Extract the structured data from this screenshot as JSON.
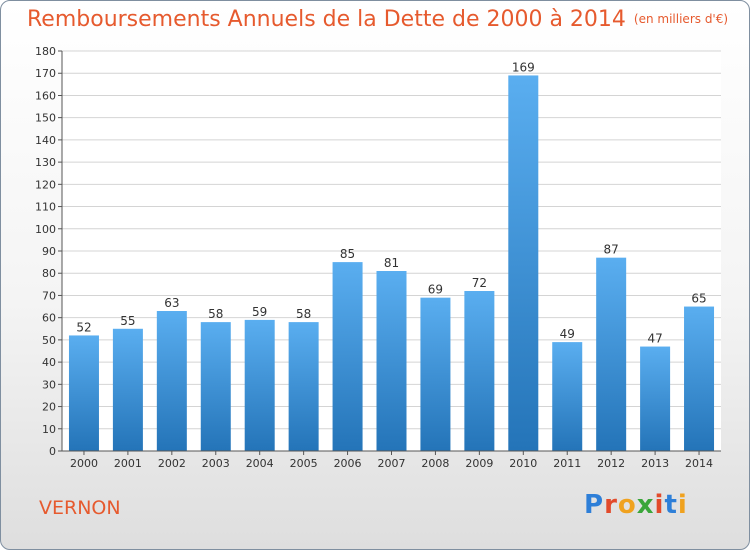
{
  "title": "Remboursements Annuels de la Dette de 2000 à 2014",
  "subtitle": "(en milliers d'€)",
  "footer": {
    "city": "VERNON",
    "logo": "Proxiti"
  },
  "colors": {
    "accent": "#e65a2e",
    "bar_top": "#5aaef0",
    "bar_bottom": "#2474b8"
  },
  "chart_data": {
    "type": "bar",
    "title": "Remboursements Annuels de la Dette de 2000 à 2014",
    "subtitle": "(en milliers d'€)",
    "categories": [
      "2000",
      "2001",
      "2002",
      "2003",
      "2004",
      "2005",
      "2006",
      "2007",
      "2008",
      "2009",
      "2010",
      "2011",
      "2012",
      "2013",
      "2014"
    ],
    "values": [
      52,
      55,
      63,
      58,
      59,
      58,
      85,
      81,
      69,
      72,
      169,
      49,
      87,
      47,
      65
    ],
    "ylim": [
      0,
      180
    ],
    "yticks": [
      0,
      10,
      20,
      30,
      40,
      50,
      60,
      70,
      80,
      90,
      100,
      110,
      120,
      130,
      140,
      150,
      160,
      170,
      180
    ],
    "grid": true,
    "data_labels": true
  }
}
